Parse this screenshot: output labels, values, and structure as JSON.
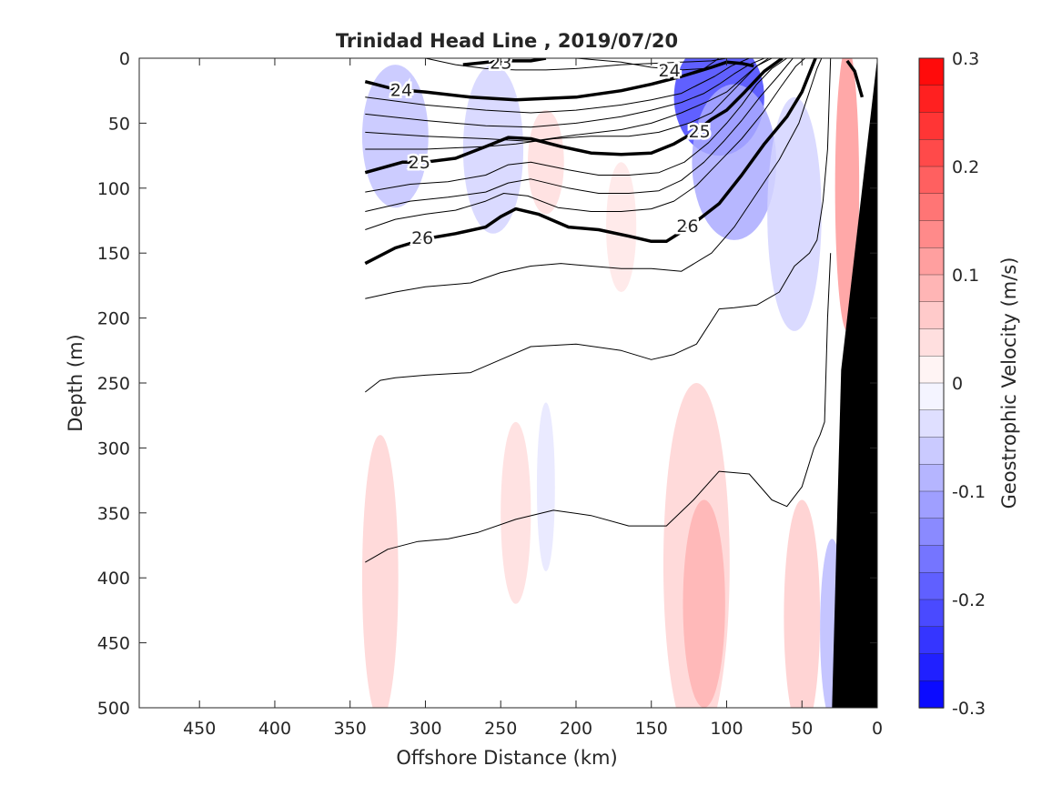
{
  "chart_data": {
    "type": "contour",
    "title": "Trinidad Head Line , 2019/07/20",
    "xlabel": "Offshore Distance (km)",
    "ylabel": "Depth (m)",
    "colorbar_label": "Geostrophic Velocity (m/s)",
    "xlim": [
      490,
      0
    ],
    "ylim": [
      0,
      500
    ],
    "x_reversed": true,
    "y_reversed": true,
    "xticks": [
      450,
      400,
      350,
      300,
      250,
      200,
      150,
      100,
      50,
      0
    ],
    "yticks": [
      0,
      50,
      100,
      150,
      200,
      250,
      300,
      350,
      400,
      450,
      500
    ],
    "clim": [
      -0.3,
      0.3
    ],
    "cticks": [
      0.3,
      0.2,
      0.1,
      0,
      -0.1,
      -0.2,
      -0.3
    ],
    "ctick_labels": [
      "0.3",
      "0.2",
      "0.1",
      "0",
      "-0.1",
      "-0.2",
      "-0.3"
    ],
    "colorbar_levels": 24,
    "colors": {
      "negative_max": "#0000ff",
      "positive_max": "#ff0000",
      "zero": "#ffffff",
      "bathymetry": "#000000",
      "contour": "#000000"
    },
    "density_labels": [
      {
        "text": "23",
        "x": 250,
        "y": 3
      },
      {
        "text": "24",
        "x": 316,
        "y": 24
      },
      {
        "text": "24",
        "x": 138,
        "y": 9
      },
      {
        "text": "25",
        "x": 118,
        "y": 56
      },
      {
        "text": "25",
        "x": 304,
        "y": 80
      },
      {
        "text": "26",
        "x": 302,
        "y": 138
      },
      {
        "text": "26",
        "x": 126,
        "y": 129
      }
    ],
    "major_isopycnals": [
      {
        "name": "23",
        "x": [
          275,
          250,
          230,
          220
        ],
        "y": [
          5,
          2,
          2,
          0
        ]
      },
      {
        "name": "24",
        "x": [
          340,
          320,
          300,
          270,
          240,
          200,
          170,
          150,
          130,
          110,
          100,
          90,
          82
        ],
        "y": [
          18,
          24,
          26,
          30,
          32,
          30,
          25,
          20,
          14,
          7,
          3,
          4,
          6
        ]
      },
      {
        "name": "24b",
        "x": [
          20,
          15,
          10
        ],
        "y": [
          2,
          10,
          30
        ]
      },
      {
        "name": "25",
        "x": [
          340,
          315,
          300,
          280,
          260,
          245,
          230,
          210,
          190,
          170,
          150,
          135,
          120,
          110,
          100,
          88,
          75,
          63
        ],
        "y": [
          88,
          80,
          80,
          77,
          68,
          61,
          62,
          68,
          73,
          74,
          73,
          66,
          56,
          47,
          40,
          26,
          10,
          0
        ]
      },
      {
        "name": "26",
        "x": [
          340,
          320,
          300,
          280,
          260,
          250,
          240,
          225,
          205,
          185,
          165,
          150,
          140,
          125,
          105,
          90,
          75,
          60,
          50,
          41
        ],
        "y": [
          158,
          146,
          139,
          135,
          130,
          122,
          116,
          120,
          130,
          132,
          137,
          141,
          141,
          130,
          112,
          90,
          66,
          45,
          26,
          0
        ]
      }
    ],
    "minor_isopycnals": [
      {
        "x": [
          300,
          280,
          260,
          240,
          220,
          200,
          170,
          150,
          130,
          110,
          100,
          95
        ],
        "y": [
          0,
          5,
          8,
          9,
          9,
          8,
          5,
          4,
          3,
          2,
          0,
          0
        ]
      },
      {
        "x": [
          200,
          170,
          150,
          130,
          115,
          105
        ],
        "y": [
          0,
          3,
          7,
          9,
          8,
          0
        ]
      },
      {
        "x": [
          340,
          300,
          260,
          230,
          200,
          170,
          150,
          130,
          120,
          108,
          97,
          85,
          78
        ],
        "y": [
          30,
          36,
          40,
          42,
          40,
          36,
          32,
          27,
          21,
          14,
          6,
          0,
          0
        ]
      },
      {
        "x": [
          340,
          300,
          260,
          230,
          200,
          170,
          150,
          130,
          115,
          105,
          95,
          85,
          75,
          70
        ],
        "y": [
          43,
          48,
          52,
          53,
          50,
          45,
          40,
          34,
          27,
          20,
          12,
          5,
          0,
          0
        ]
      },
      {
        "x": [
          340,
          300,
          260,
          230,
          200,
          170,
          150,
          130,
          112,
          100,
          90,
          80,
          72
        ],
        "y": [
          57,
          60,
          62,
          64,
          59,
          55,
          50,
          42,
          33,
          26,
          16,
          6,
          0
        ]
      },
      {
        "x": [
          340,
          300,
          260,
          240,
          215,
          190,
          165,
          145,
          125,
          110,
          100,
          90,
          80,
          70
        ],
        "y": [
          70,
          70,
          68,
          66,
          62,
          60,
          60,
          57,
          50,
          42,
          30,
          18,
          6,
          0
        ]
      },
      {
        "x": [
          340,
          310,
          285,
          260,
          245,
          230,
          205,
          185,
          165,
          145,
          128,
          112,
          100,
          90,
          80,
          70,
          60
        ],
        "y": [
          103,
          97,
          95,
          90,
          82,
          80,
          86,
          90,
          90,
          88,
          80,
          65,
          50,
          36,
          20,
          8,
          0
        ]
      },
      {
        "x": [
          340,
          310,
          285,
          260,
          245,
          230,
          205,
          185,
          165,
          145,
          130,
          115,
          102,
          90,
          78,
          66,
          56
        ],
        "y": [
          118,
          110,
          107,
          103,
          96,
          93,
          100,
          104,
          104,
          102,
          94,
          80,
          64,
          48,
          30,
          14,
          0
        ]
      },
      {
        "x": [
          340,
          320,
          300,
          280,
          260,
          248,
          232,
          212,
          190,
          170,
          150,
          135,
          120,
          105,
          90,
          76,
          64,
          54,
          48
        ],
        "y": [
          132,
          124,
          120,
          117,
          110,
          104,
          106,
          115,
          118,
          118,
          116,
          110,
          98,
          80,
          62,
          42,
          22,
          6,
          0
        ]
      },
      {
        "x": [
          340,
          320,
          300,
          270,
          250,
          230,
          210,
          190,
          170,
          150,
          130,
          110,
          95,
          80,
          65,
          52,
          44,
          40,
          37
        ],
        "y": [
          185,
          180,
          176,
          173,
          165,
          160,
          158,
          160,
          162,
          162,
          164,
          150,
          130,
          104,
          78,
          50,
          22,
          8,
          0
        ]
      },
      {
        "x": [
          340,
          330,
          320,
          300,
          270,
          250,
          230,
          200,
          170,
          150,
          135,
          120,
          105,
          95,
          80,
          65,
          55,
          45,
          40,
          36,
          33,
          31
        ],
        "y": [
          257,
          248,
          246,
          244,
          242,
          232,
          222,
          220,
          225,
          232,
          228,
          220,
          193,
          192,
          190,
          180,
          160,
          150,
          140,
          110,
          70,
          0
        ]
      },
      {
        "x": [
          340,
          325,
          305,
          285,
          265,
          240,
          215,
          190,
          165,
          140,
          122,
          105,
          85,
          70,
          60,
          50,
          42,
          38,
          35,
          33,
          31
        ],
        "y": [
          388,
          378,
          372,
          370,
          365,
          355,
          348,
          352,
          360,
          360,
          340,
          318,
          320,
          340,
          345,
          330,
          300,
          290,
          280,
          200,
          150
        ]
      }
    ],
    "velocity_patches": [
      {
        "cx": 320,
        "cy": 60,
        "rx": 22,
        "ry": 55,
        "v": -0.07
      },
      {
        "cx": 255,
        "cy": 70,
        "rx": 20,
        "ry": 65,
        "v": -0.05
      },
      {
        "cx": 105,
        "cy": 30,
        "rx": 30,
        "ry": 45,
        "v": -0.22
      },
      {
        "cx": 95,
        "cy": 80,
        "rx": 28,
        "ry": 60,
        "v": -0.1
      },
      {
        "cx": 55,
        "cy": 120,
        "rx": 18,
        "ry": 90,
        "v": -0.05
      },
      {
        "cx": 220,
        "cy": 80,
        "rx": 12,
        "ry": 40,
        "v": 0.04
      },
      {
        "cx": 170,
        "cy": 130,
        "rx": 10,
        "ry": 50,
        "v": 0.03
      },
      {
        "cx": 20,
        "cy": 100,
        "rx": 8,
        "ry": 110,
        "v": 0.12
      },
      {
        "cx": 240,
        "cy": 350,
        "rx": 10,
        "ry": 70,
        "v": 0.04
      },
      {
        "cx": 220,
        "cy": 330,
        "rx": 6,
        "ry": 65,
        "v": -0.03
      },
      {
        "cx": 330,
        "cy": 400,
        "rx": 12,
        "ry": 110,
        "v": 0.05
      },
      {
        "cx": 120,
        "cy": 390,
        "rx": 22,
        "ry": 140,
        "v": 0.05
      },
      {
        "cx": 115,
        "cy": 420,
        "rx": 14,
        "ry": 80,
        "v": 0.09
      },
      {
        "cx": 50,
        "cy": 430,
        "rx": 12,
        "ry": 90,
        "v": 0.06
      },
      {
        "cx": 30,
        "cy": 440,
        "rx": 8,
        "ry": 70,
        "v": -0.08
      }
    ],
    "bathymetry": {
      "x": [
        30,
        24,
        0,
        0
      ],
      "y": [
        500,
        240,
        0,
        500
      ]
    }
  }
}
